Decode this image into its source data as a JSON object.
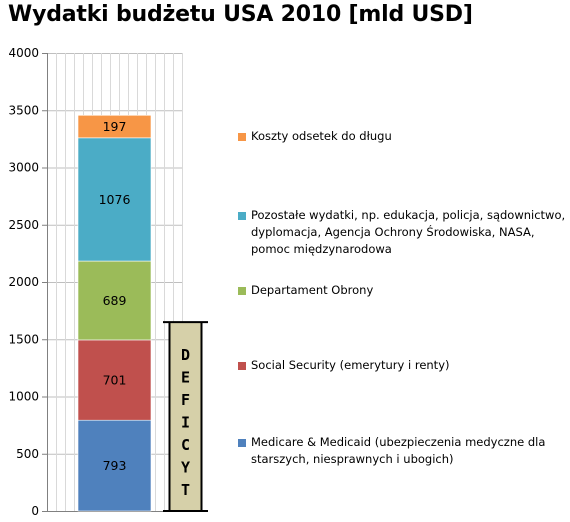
{
  "title": "Wydatki budżetu USA 2010 [mld USD]",
  "chart_data": {
    "type": "bar",
    "stacked": true,
    "title": "Wydatki budżetu USA 2010 [mld USD]",
    "ylim": [
      0,
      4000
    ],
    "yticks": [
      0,
      500,
      1000,
      1500,
      2000,
      2500,
      3000,
      3500,
      4000
    ],
    "grid": true,
    "legend_position": "right",
    "series": [
      {
        "name": "Medicare & Medicaid (ubezpieczenia medyczne dla starszych, niesprawnych i ubogich)",
        "values": [
          793
        ],
        "color": "#4f81bd"
      },
      {
        "name": "Social Security (emerytury i renty)",
        "values": [
          701
        ],
        "color": "#c0504d"
      },
      {
        "name": "Departament Obrony",
        "values": [
          689
        ],
        "color": "#9bbb59"
      },
      {
        "name": "Pozostałe wydatki, np. edukacja, policja, sądownictwo, dyplomacja, Agencja Ochrony Środowiska, NASA, pomoc międzynarodowa",
        "values": [
          1076
        ],
        "color": "#4bacc6"
      },
      {
        "name": "Koszty odsetek do długu",
        "values": [
          197
        ],
        "color": "#f79646"
      }
    ],
    "annotation": {
      "text": "DEFICYT",
      "letters": [
        "D",
        "E",
        "F",
        "I",
        "C",
        "Y",
        "T"
      ],
      "from": 0,
      "to": 1650,
      "fill": "#d6d0a9"
    }
  }
}
